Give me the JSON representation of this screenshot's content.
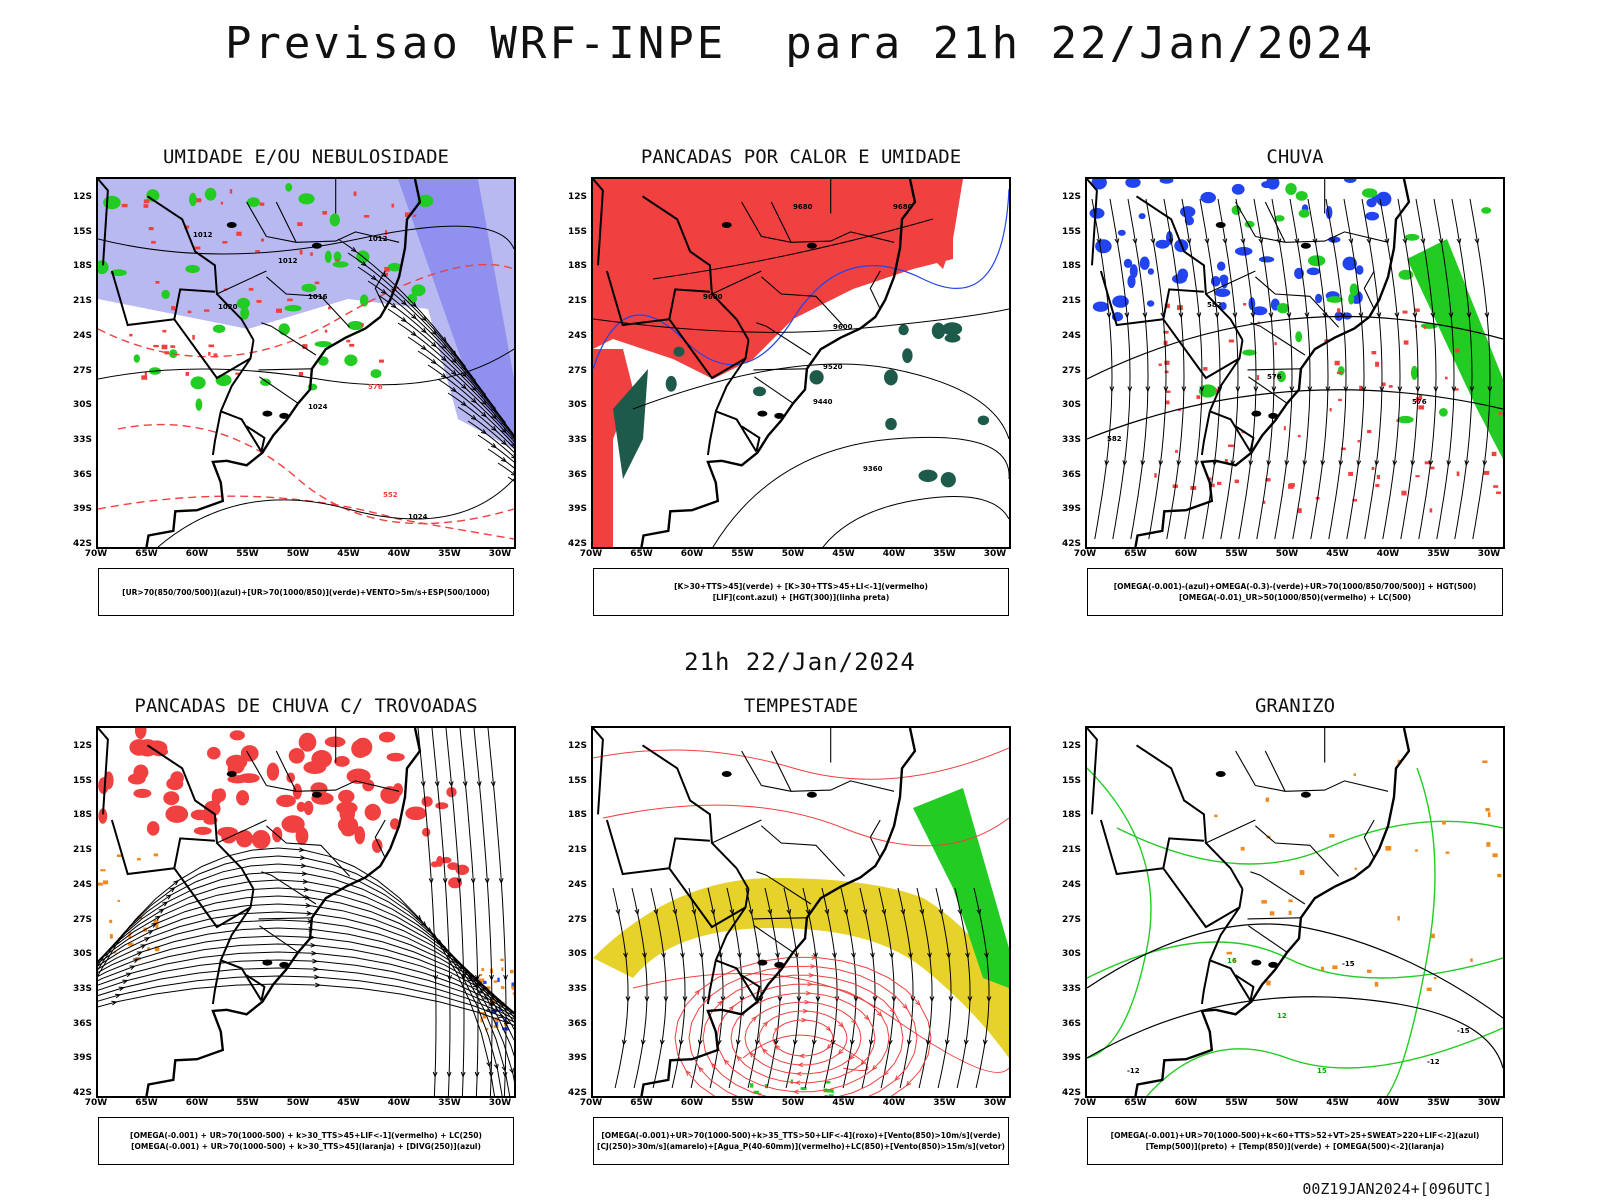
{
  "header": {
    "title": "Previsao WRF-INPE  para 21h 22/Jan/2024"
  },
  "subtitle": "21h 22/Jan/2024",
  "footer": "00Z19JAN2024+[096UTC]",
  "axes": {
    "lat_labels": [
      "12S",
      "15S",
      "18S",
      "21S",
      "24S",
      "27S",
      "30S",
      "33S",
      "36S",
      "39S",
      "42S"
    ],
    "lon_labels": [
      "70W",
      "65W",
      "60W",
      "55W",
      "50W",
      "45W",
      "40W",
      "35W",
      "30W"
    ]
  },
  "panels": [
    {
      "title": "UMIDADE E/OU NEBULOSIDADE",
      "legend": [
        "[UR>70(850/700/500)](azul)+[UR>70(1000/850)](verde)+VENTO>5m/s+ESP(500/1000)"
      ],
      "contour_labels": [
        "1012",
        "1012",
        "1012",
        "1016",
        "1020",
        "1024",
        "1024",
        "552",
        "576"
      ]
    },
    {
      "title": "PANCADAS POR CALOR E UMIDADE",
      "legend": [
        "[K>30+TTS>45](verde) + [K>30+TTS>45+LI<-1](vermelho)",
        "[LIF](cont.azul) + [HGT(300)](linha preta)"
      ],
      "contour_labels": [
        "9680",
        "9680",
        "9600",
        "9600",
        "9520",
        "9440",
        "9360"
      ]
    },
    {
      "title": "CHUVA",
      "legend": [
        "[OMEGA(-0.001)-(azul)+OMEGA(-0.3)-(verde)+UR>70(1000/850/700/500)] + HGT(500)",
        "[OMEGA(-0.01)_UR>50(1000/850)(vermelho) + LC(500)"
      ],
      "contour_labels": [
        "582",
        "576",
        "576",
        "582"
      ]
    },
    {
      "title": "PANCADAS DE CHUVA C/ TROVOADAS",
      "legend": [
        "[OMEGA(-0.001) + UR>70(1000-500) + k>30_TTS>45+LIF<-1](vermelho) + LC(250)",
        "[OMEGA(-0.001) + UR>70(1000-500) + k>30_TTS>45](laranja) + [DIVG(250)](azul)"
      ],
      "contour_labels": []
    },
    {
      "title": "TEMPESTADE",
      "legend": [
        "[OMEGA(-0.001)+UR>70(1000-500)+k>35_TTS>50+LIF<-4](roxo)+[Vento(850)>10m/s](verde)",
        "[CJ(250)>30m/s](amarelo)+[Agua_P(40-60mm)](vermelho)+LC(850)+[Vento(850)>15m/s](vetor)"
      ],
      "contour_labels": []
    },
    {
      "title": "GRANIZO",
      "legend": [
        "[OMEGA(-0.001)+UR>70(1000-500)+k<60+TTS>52+VT>25+SWEAT>220+LIF<-2](azul)",
        "[Temp(500)](preto) + [Temp(850)](verde) + [OMEGA(500)<-2](laranja)"
      ],
      "contour_labels": [
        "-12",
        "-15",
        "-15",
        "-12",
        "15",
        "12",
        "16"
      ]
    }
  ],
  "colors": {
    "red": "#f04040",
    "green": "#22cc22",
    "blue": "#2244ee",
    "lavender": "#b9b9f2",
    "yellow": "#e6d22a",
    "orange": "#f08a20",
    "darkgreen": "#1e5a4a"
  }
}
